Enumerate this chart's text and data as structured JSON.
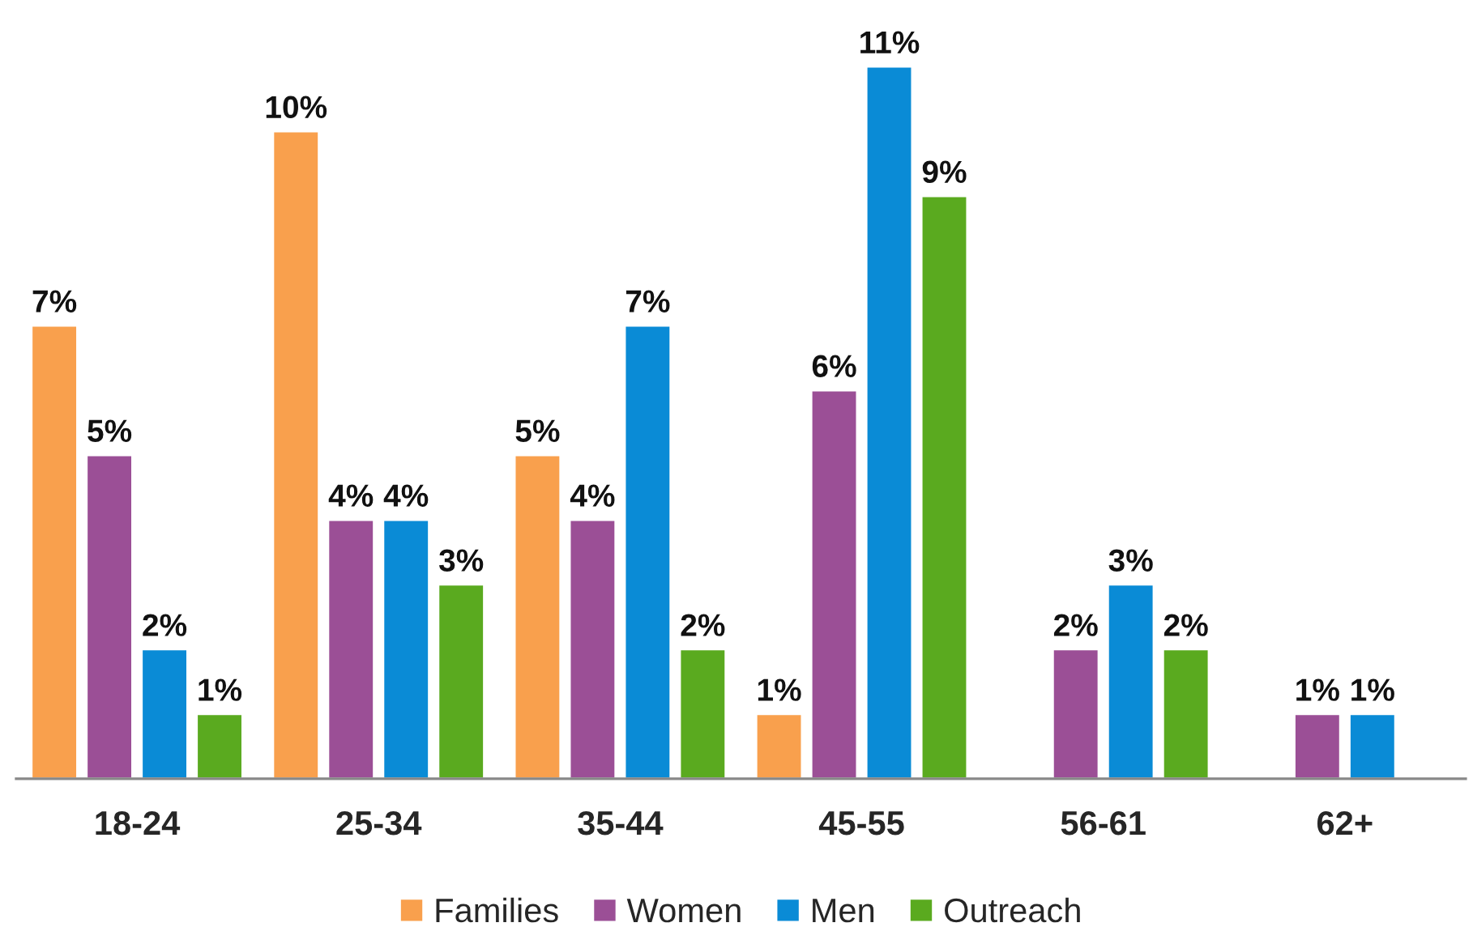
{
  "chart_data": {
    "type": "bar",
    "categories": [
      "18-24",
      "25-34",
      "35-44",
      "45-55",
      "56-61",
      "62+"
    ],
    "series": [
      {
        "name": "Families",
        "color": "#f9a04d",
        "values": [
          7,
          10,
          5,
          1,
          null,
          null
        ],
        "value_labels": [
          "7%",
          "10%",
          "5%",
          "1%",
          null,
          null
        ]
      },
      {
        "name": "Women",
        "color": "#9b4f96",
        "values": [
          5,
          4,
          4,
          6,
          2,
          1
        ],
        "value_labels": [
          "5%",
          "4%",
          "4%",
          "6%",
          "2%",
          "1%"
        ]
      },
      {
        "name": "Men",
        "color": "#0a8bd6",
        "values": [
          2,
          4,
          7,
          11,
          3,
          1
        ],
        "value_labels": [
          "2%",
          "4%",
          "7%",
          "11%",
          "3%",
          "1%"
        ]
      },
      {
        "name": "Outreach",
        "color": "#5aaa1f",
        "values": [
          1,
          3,
          2,
          9,
          2,
          null
        ],
        "value_labels": [
          "1%",
          "3%",
          "2%",
          "9%",
          "2%",
          null
        ]
      }
    ],
    "legend": "bottom",
    "grid": false
  }
}
